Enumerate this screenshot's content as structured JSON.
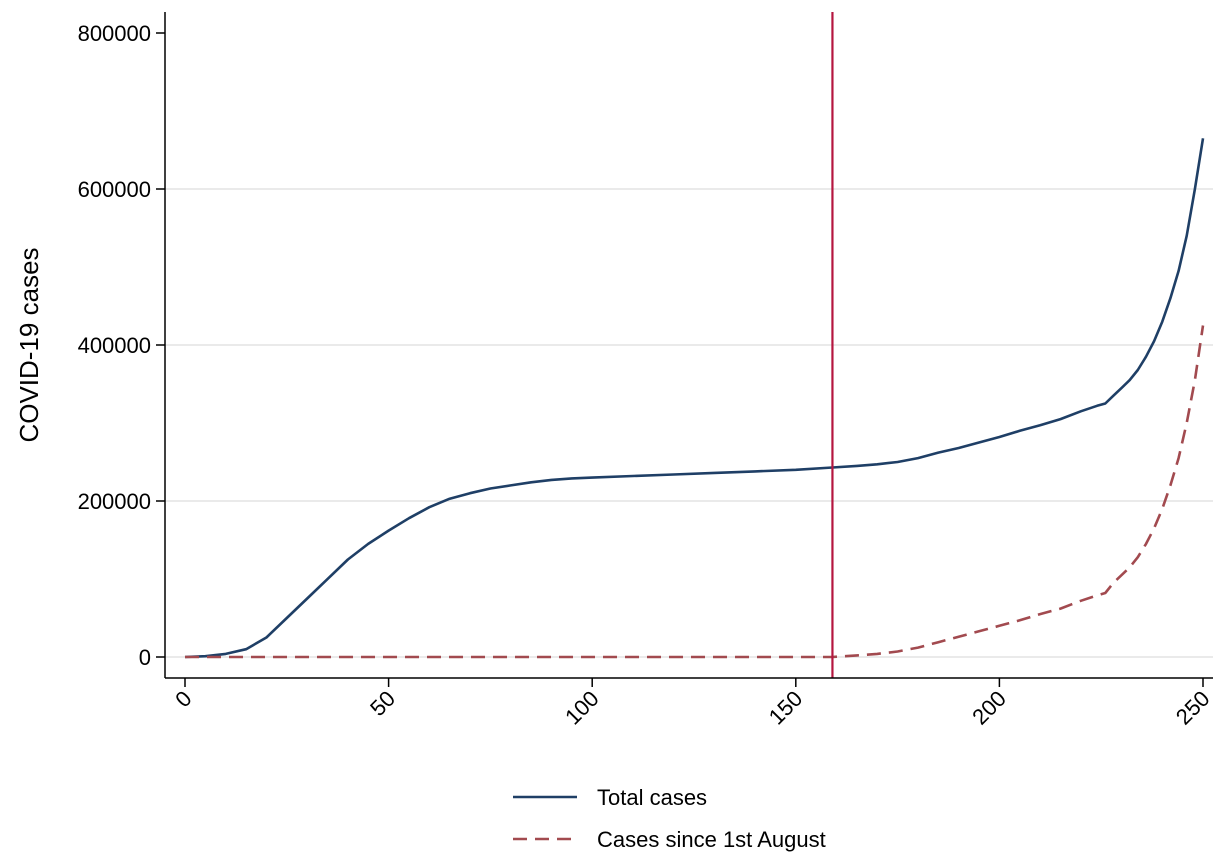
{
  "chart_data": {
    "type": "line",
    "title": "",
    "xlabel": "",
    "ylabel": "COVID-19 cases",
    "xlim": [
      0,
      250
    ],
    "ylim": [
      0,
      800000
    ],
    "x_ticks": [
      0,
      50,
      100,
      150,
      200,
      250
    ],
    "y_ticks": [
      0,
      200000,
      400000,
      600000,
      800000
    ],
    "grid": "horizontal",
    "legend_position": "bottom",
    "reference_line": {
      "x": 159,
      "color": "#b5163f"
    },
    "series": [
      {
        "name": "Total cases",
        "color": "#1f3f66",
        "style": "solid",
        "x": [
          0,
          5,
          10,
          15,
          20,
          25,
          30,
          35,
          40,
          45,
          50,
          55,
          60,
          65,
          70,
          75,
          80,
          85,
          90,
          95,
          100,
          110,
          120,
          130,
          140,
          150,
          159,
          165,
          170,
          175,
          180,
          185,
          190,
          195,
          200,
          205,
          210,
          215,
          220,
          224,
          226,
          228,
          230,
          232,
          234,
          236,
          238,
          240,
          242,
          244,
          246,
          248,
          250
        ],
        "y": [
          0,
          1000,
          4000,
          10000,
          25000,
          50000,
          75000,
          100000,
          125000,
          145000,
          162000,
          178000,
          192000,
          203000,
          210000,
          216000,
          220000,
          224000,
          227000,
          229000,
          230000,
          232000,
          234000,
          236000,
          238000,
          240000,
          243000,
          245000,
          247000,
          250000,
          255000,
          262000,
          268000,
          275000,
          282000,
          290000,
          297000,
          305000,
          315000,
          322000,
          325000,
          335000,
          345000,
          355000,
          368000,
          385000,
          405000,
          430000,
          460000,
          495000,
          540000,
          600000,
          665000
        ]
      },
      {
        "name": "Cases since 1st August",
        "color": "#a24a4f",
        "style": "dashed",
        "x": [
          0,
          159,
          165,
          170,
          175,
          180,
          185,
          190,
          195,
          200,
          205,
          210,
          215,
          220,
          224,
          226,
          228,
          230,
          232,
          234,
          236,
          238,
          240,
          242,
          244,
          246,
          248,
          250
        ],
        "y": [
          0,
          0,
          2000,
          4000,
          7000,
          12000,
          19000,
          26000,
          33000,
          40000,
          47000,
          55000,
          62000,
          72000,
          79000,
          82000,
          95000,
          105000,
          115000,
          128000,
          145000,
          165000,
          190000,
          220000,
          255000,
          300000,
          355000,
          425000
        ]
      }
    ]
  }
}
